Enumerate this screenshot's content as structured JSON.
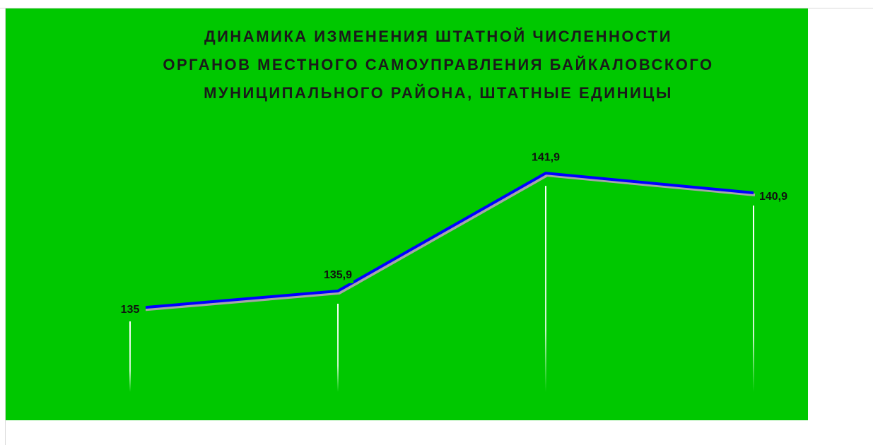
{
  "chart_data": {
    "type": "line",
    "title": [
      "ДИНАМИКА ИЗМЕНЕНИЯ ШТАТНОЙ ЧИСЛЕННОСТИ",
      "ОРГАНОВ МЕСТНОГО САМОУПРАВЛЕНИЯ БАЙКАЛОВСКОГО",
      "МУНИЦИПАЛЬНОГО РАЙОНА, ШТАТНЫЕ ЕДИНИЦЫ"
    ],
    "values": [
      135,
      135.9,
      141.9,
      140.9
    ],
    "value_labels": [
      "135",
      "135,9",
      "141,9",
      "140,9"
    ],
    "color": "#0000ff",
    "background": "#00c800",
    "ylim": [
      130,
      145
    ]
  }
}
